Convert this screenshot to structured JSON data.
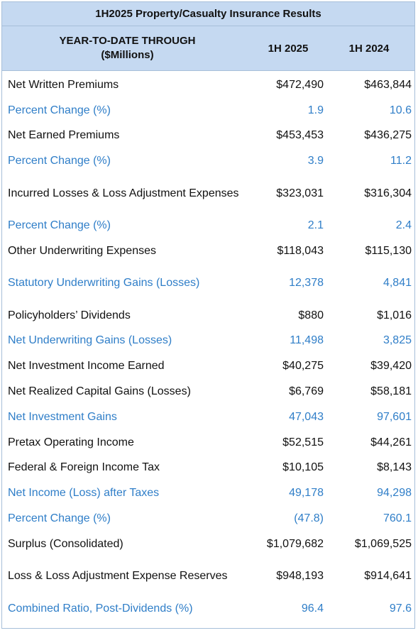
{
  "title": "1H2025 Property/Casualty Insurance Results",
  "header": {
    "label_line1": "YEAR-TO-DATE THROUGH",
    "label_line2": "($Millions)",
    "col1": "1H 2025",
    "col2": "1H 2024"
  },
  "rows": [
    {
      "label": "Net Written Premiums",
      "v2025": "$472,490",
      "v2024": "$463,844",
      "style": "black"
    },
    {
      "label": "Percent Change (%)",
      "v2025": "1.9",
      "v2024": "10.6",
      "style": "blue"
    },
    {
      "label": "Net Earned Premiums",
      "v2025": "$453,453",
      "v2024": "$436,275",
      "style": "black"
    },
    {
      "label": "Percent Change (%)",
      "v2025": "3.9",
      "v2024": "11.2",
      "style": "blue"
    },
    {
      "label": "Incurred Losses & Loss Adjustment Expenses",
      "v2025": "$323,031",
      "v2024": "$316,304",
      "style": "black"
    },
    {
      "label": "Percent Change (%)",
      "v2025": "2.1",
      "v2024": "2.4",
      "style": "blue"
    },
    {
      "label": "Other Underwriting Expenses",
      "v2025": "$118,043",
      "v2024": "$115,130",
      "style": "black"
    },
    {
      "label": "Statutory Underwriting Gains (Losses)",
      "v2025": "12,378",
      "v2024": "4,841",
      "style": "blue"
    },
    {
      "label": "Policyholders’ Dividends",
      "v2025": "$880",
      "v2024": "$1,016",
      "style": "black"
    },
    {
      "label": "Net Underwriting Gains (Losses)",
      "v2025": "11,498",
      "v2024": "3,825",
      "style": "blue"
    },
    {
      "label": "Net Investment Income Earned",
      "v2025": "$40,275",
      "v2024": "$39,420",
      "style": "black"
    },
    {
      "label": "Net Realized Capital Gains (Losses)",
      "v2025": "$6,769",
      "v2024": "$58,181",
      "style": "black"
    },
    {
      "label": "Net Investment Gains",
      "v2025": "47,043",
      "v2024": "97,601",
      "style": "blue"
    },
    {
      "label": "Pretax Operating Income",
      "v2025": "$52,515",
      "v2024": "$44,261",
      "style": "black"
    },
    {
      "label": "Federal & Foreign Income Tax",
      "v2025": "$10,105",
      "v2024": "$8,143",
      "style": "black"
    },
    {
      "label": "Net Income (Loss) after Taxes",
      "v2025": "49,178",
      "v2024": "94,298",
      "style": "blue"
    },
    {
      "label": "Percent Change (%)",
      "v2025": "(47.8)",
      "v2024": "760.1",
      "style": "blue"
    },
    {
      "label": "Surplus (Consolidated)",
      "v2025": "$1,079,682",
      "v2024": "$1,069,525",
      "style": "black"
    },
    {
      "label": "Loss & Loss Adjustment Expense Reserves",
      "v2025": "$948,193",
      "v2024": "$914,641",
      "style": "black"
    },
    {
      "label": "Combined Ratio, Post-Dividends (%)",
      "v2025": "96.4",
      "v2024": "97.6",
      "style": "blue"
    }
  ]
}
